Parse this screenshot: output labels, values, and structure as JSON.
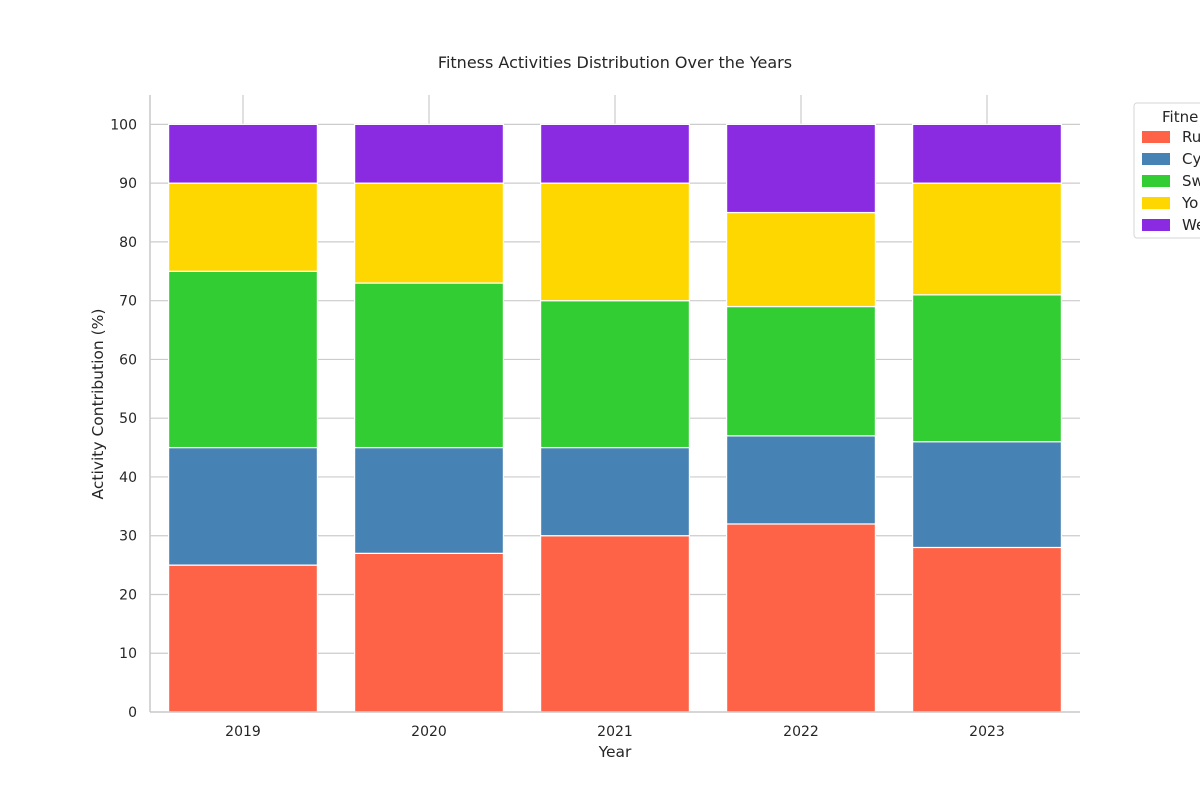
{
  "chart_data": {
    "type": "bar",
    "stacked": true,
    "title": "Fitness Activities Distribution Over the Years",
    "xlabel": "Year",
    "ylabel": "Activity Contribution (%)",
    "categories": [
      "2019",
      "2020",
      "2021",
      "2022",
      "2023"
    ],
    "ylim": [
      0,
      105
    ],
    "yticks": [
      0,
      10,
      20,
      30,
      40,
      50,
      60,
      70,
      80,
      90,
      100
    ],
    "grid": true,
    "legend": {
      "title": "Fitne",
      "placement": "top-right, outside plot (clipped)"
    },
    "series": [
      {
        "name": "Ru",
        "color": "#ff6347",
        "values": [
          25,
          27,
          30,
          32,
          28
        ]
      },
      {
        "name": "Cy",
        "color": "#4682b4",
        "values": [
          20,
          18,
          15,
          15,
          18
        ]
      },
      {
        "name": "Sw",
        "color": "#32cd32",
        "values": [
          30,
          28,
          25,
          22,
          25
        ]
      },
      {
        "name": "Yo",
        "color": "#ffd700",
        "values": [
          15,
          17,
          20,
          16,
          19
        ]
      },
      {
        "name": "We",
        "color": "#8a2be2",
        "values": [
          10,
          10,
          10,
          15,
          10
        ]
      }
    ]
  }
}
